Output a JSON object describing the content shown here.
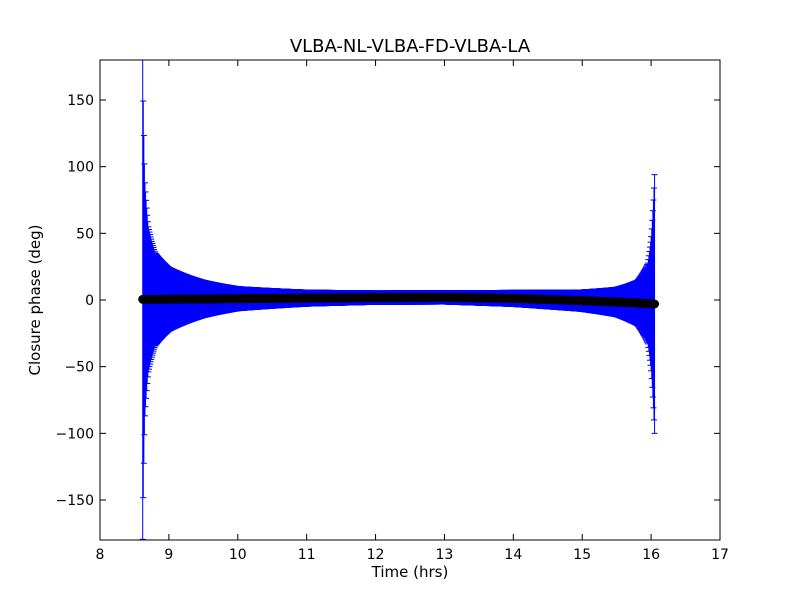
{
  "chart_data": {
    "type": "scatter",
    "title": "VLBA-NL-VLBA-FD-VLBA-LA",
    "xlabel": "Time (hrs)",
    "ylabel": "Closure phase (deg)",
    "xlim": [
      8,
      17
    ],
    "ylim": [
      -180,
      180
    ],
    "xticks": [
      8,
      9,
      10,
      11,
      12,
      13,
      14,
      15,
      16,
      17
    ],
    "yticks": [
      -150,
      -100,
      -50,
      0,
      50,
      100,
      150
    ],
    "ytick_labels": [
      "−150",
      "−100",
      "−50",
      "0",
      "50",
      "100",
      "150"
    ],
    "grid": false,
    "point_color": "#000000",
    "errorbar_color": "#0000ff",
    "time_range": [
      8.62,
      16.05
    ],
    "series": [
      {
        "points": [
          {
            "x": 8.62,
            "y": 0.5,
            "err": 180
          },
          {
            "x": 8.65,
            "y": 0.5,
            "err": 90
          },
          {
            "x": 8.7,
            "y": 0.5,
            "err": 55
          },
          {
            "x": 8.8,
            "y": 0.5,
            "err": 35
          },
          {
            "x": 9.0,
            "y": 0.6,
            "err": 24
          },
          {
            "x": 9.5,
            "y": 0.8,
            "err": 14
          },
          {
            "x": 10.0,
            "y": 1.0,
            "err": 9
          },
          {
            "x": 11.0,
            "y": 1.4,
            "err": 6
          },
          {
            "x": 12.0,
            "y": 1.8,
            "err": 5
          },
          {
            "x": 13.0,
            "y": 2.0,
            "err": 5
          },
          {
            "x": 14.0,
            "y": 1.2,
            "err": 6
          },
          {
            "x": 15.0,
            "y": -0.5,
            "err": 8
          },
          {
            "x": 15.5,
            "y": -1.5,
            "err": 11
          },
          {
            "x": 15.8,
            "y": -2.2,
            "err": 17
          },
          {
            "x": 15.95,
            "y": -2.6,
            "err": 30
          },
          {
            "x": 16.0,
            "y": -2.8,
            "err": 50
          },
          {
            "x": 16.05,
            "y": -3.0,
            "err": 97
          }
        ]
      }
    ]
  }
}
